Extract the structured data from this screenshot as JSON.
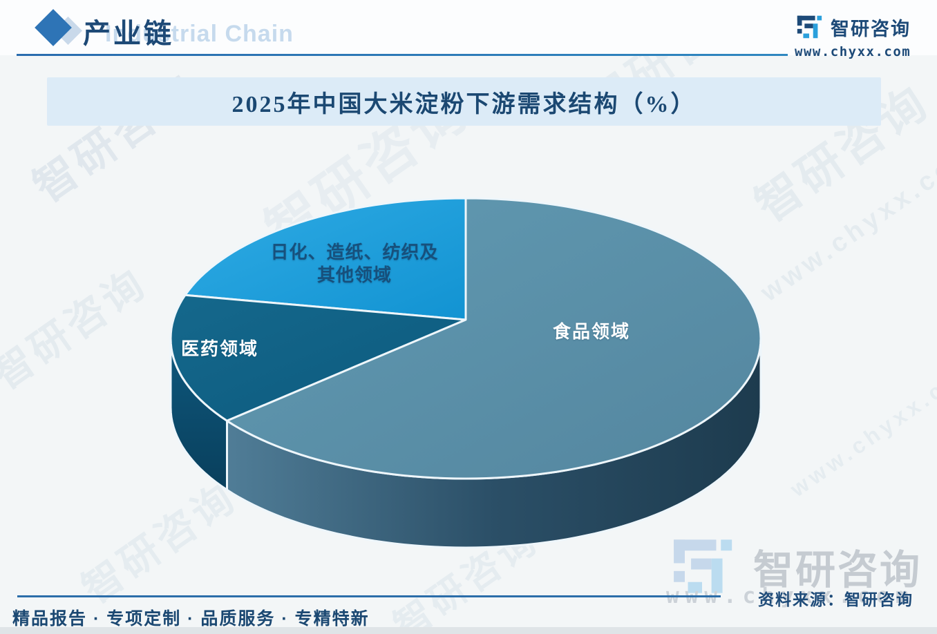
{
  "header": {
    "title": "产业链",
    "watermark_en": "Industrial Chain"
  },
  "brand": {
    "name": "智研咨询",
    "url": "www.chyxx.com"
  },
  "chart": {
    "title": "2025年中国大米淀粉下游需求结构（%）"
  },
  "chart_data": {
    "type": "pie",
    "style": "3d",
    "title": "2025年中国大米淀粉下游需求结构（%）",
    "unit": "%",
    "labels": [
      "食品领域",
      "医药领域",
      "日化、造纸、纺织及其他领域"
    ],
    "values": [
      65,
      15,
      20
    ],
    "colors": [
      "#5890a8",
      "#0f6184",
      "#18a0de"
    ],
    "label_colors": [
      "#ffffff",
      "#ffffff",
      "#17507c"
    ],
    "legend_position": "none",
    "start_angle_deg": 90,
    "direction": "clockwise"
  },
  "pie_labels": [
    {
      "text": "食品领域"
    },
    {
      "text": "医药领域"
    },
    {
      "text": "日化、造纸、纺织及\n其他领域"
    }
  ],
  "footer": {
    "tagline": "精品报告 · 专项定制 · 品质服务 · 专精特新",
    "source": "资料来源：智研咨询"
  }
}
